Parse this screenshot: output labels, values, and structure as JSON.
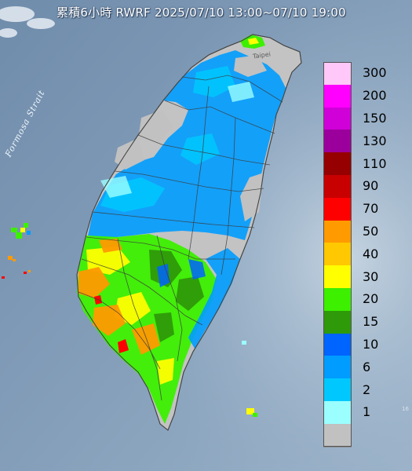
{
  "title": "累積6小時 RWRF 2025/07/10 13:00~07/10 19:00",
  "sea_label": "Formosa Strait",
  "city_label": "Taipei",
  "edge_mark": "16",
  "legend": [
    {
      "label": "300",
      "color": "#ffc8f8"
    },
    {
      "label": "200",
      "color": "#ff00ff"
    },
    {
      "label": "150",
      "color": "#d000d8"
    },
    {
      "label": "130",
      "color": "#9c009c"
    },
    {
      "label": "110",
      "color": "#960000"
    },
    {
      "label": "90",
      "color": "#c80000"
    },
    {
      "label": "70",
      "color": "#ff0000"
    },
    {
      "label": "50",
      "color": "#ff9a00"
    },
    {
      "label": "40",
      "color": "#ffc800"
    },
    {
      "label": "30",
      "color": "#ffff00"
    },
    {
      "label": "20",
      "color": "#3cf000"
    },
    {
      "label": "15",
      "color": "#2e9a09"
    },
    {
      "label": "10",
      "color": "#0064ff"
    },
    {
      "label": "6",
      "color": "#009cff"
    },
    {
      "label": "2",
      "color": "#00c8ff"
    },
    {
      "label": "1",
      "color": "#9bffff"
    },
    {
      "label": "",
      "color": "#c1c1c1"
    }
  ]
}
